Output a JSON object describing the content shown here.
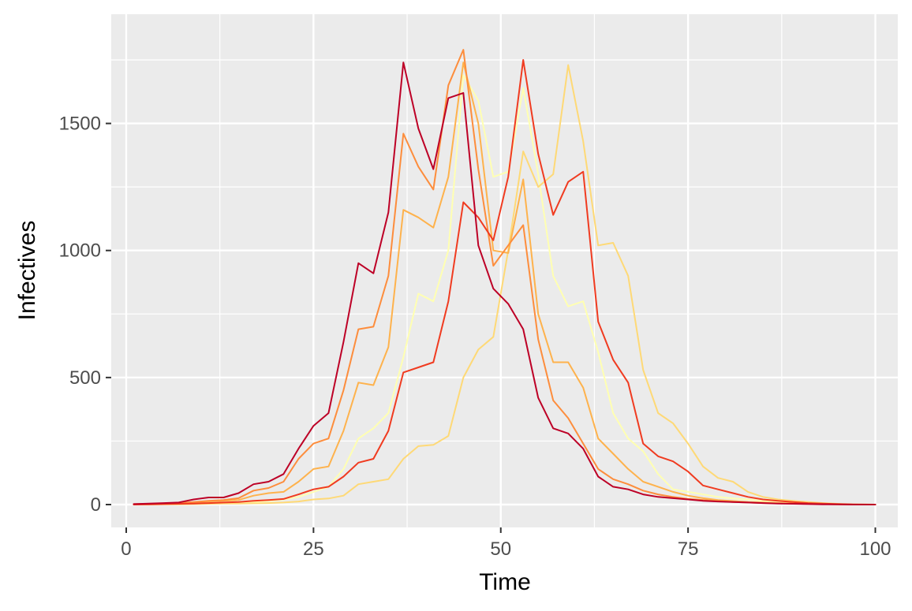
{
  "chart_data": {
    "type": "line",
    "title": "",
    "xlabel": "Time",
    "ylabel": "Infectives",
    "xlim": [
      -2,
      103
    ],
    "ylim": [
      -90,
      1930
    ],
    "x_ticks": [
      0,
      25,
      50,
      75,
      100
    ],
    "y_ticks": [
      0,
      500,
      1000,
      1500
    ],
    "grid": true,
    "legend": "none",
    "panel_color": "#ebebeb",
    "grid_color": "#ffffff",
    "x": [
      1,
      3,
      5,
      7,
      9,
      11,
      13,
      15,
      17,
      19,
      21,
      23,
      25,
      27,
      29,
      31,
      33,
      35,
      37,
      39,
      41,
      43,
      45,
      47,
      49,
      51,
      53,
      55,
      57,
      59,
      61,
      63,
      65,
      67,
      69,
      71,
      73,
      75,
      77,
      79,
      81,
      83,
      85,
      87,
      89,
      91,
      93,
      95,
      97,
      100
    ],
    "series": [
      {
        "color": "#ffffb2",
        "values": [
          0,
          1,
          2,
          3,
          5,
          6,
          7,
          8,
          10,
          14,
          20,
          30,
          50,
          70,
          140,
          260,
          300,
          360,
          580,
          830,
          800,
          1000,
          1690,
          1590,
          1290,
          1310,
          1640,
          1300,
          900,
          780,
          800,
          600,
          360,
          260,
          210,
          120,
          60,
          50,
          40,
          30,
          24,
          20,
          15,
          12,
          9,
          6,
          4,
          2,
          1,
          0
        ]
      },
      {
        "color": "#fed976",
        "values": [
          0,
          0,
          1,
          1,
          2,
          3,
          4,
          4,
          5,
          6,
          8,
          12,
          20,
          24,
          35,
          80,
          90,
          100,
          180,
          230,
          235,
          270,
          500,
          610,
          660,
          1000,
          1390,
          1250,
          1300,
          1730,
          1430,
          1020,
          1030,
          900,
          530,
          360,
          320,
          240,
          150,
          105,
          90,
          50,
          30,
          20,
          15,
          10,
          6,
          3,
          1,
          0
        ]
      },
      {
        "color": "#feb24c",
        "values": [
          1,
          2,
          3,
          4,
          8,
          12,
          15,
          18,
          35,
          45,
          50,
          90,
          140,
          150,
          290,
          480,
          470,
          620,
          1160,
          1130,
          1090,
          1290,
          1740,
          1500,
          1000,
          990,
          1280,
          750,
          560,
          560,
          460,
          260,
          200,
          140,
          90,
          70,
          50,
          35,
          25,
          18,
          14,
          10,
          8,
          6,
          4,
          3,
          2,
          1,
          0,
          0
        ]
      },
      {
        "color": "#fd8d3c",
        "values": [
          2,
          3,
          4,
          6,
          10,
          15,
          18,
          25,
          55,
          65,
          90,
          180,
          240,
          260,
          450,
          690,
          700,
          900,
          1460,
          1330,
          1240,
          1650,
          1790,
          1320,
          940,
          1020,
          1100,
          650,
          410,
          340,
          240,
          140,
          100,
          80,
          55,
          40,
          30,
          22,
          18,
          14,
          10,
          8,
          6,
          5,
          4,
          3,
          2,
          1,
          0,
          0
        ]
      },
      {
        "color": "#f03b20",
        "values": [
          0,
          1,
          2,
          3,
          4,
          6,
          8,
          10,
          15,
          18,
          22,
          40,
          60,
          70,
          110,
          165,
          180,
          290,
          520,
          540,
          560,
          800,
          1190,
          1130,
          1040,
          1290,
          1750,
          1380,
          1140,
          1270,
          1310,
          720,
          570,
          480,
          240,
          190,
          170,
          130,
          75,
          60,
          45,
          30,
          20,
          15,
          10,
          6,
          4,
          2,
          1,
          0
        ]
      },
      {
        "color": "#bd0026",
        "values": [
          2,
          4,
          6,
          8,
          20,
          28,
          28,
          45,
          80,
          90,
          120,
          220,
          310,
          360,
          640,
          950,
          910,
          1150,
          1740,
          1480,
          1320,
          1600,
          1620,
          1020,
          850,
          790,
          690,
          420,
          300,
          280,
          220,
          110,
          70,
          60,
          40,
          30,
          25,
          20,
          15,
          12,
          10,
          8,
          6,
          4,
          3,
          2,
          1,
          1,
          0,
          0
        ]
      }
    ]
  }
}
